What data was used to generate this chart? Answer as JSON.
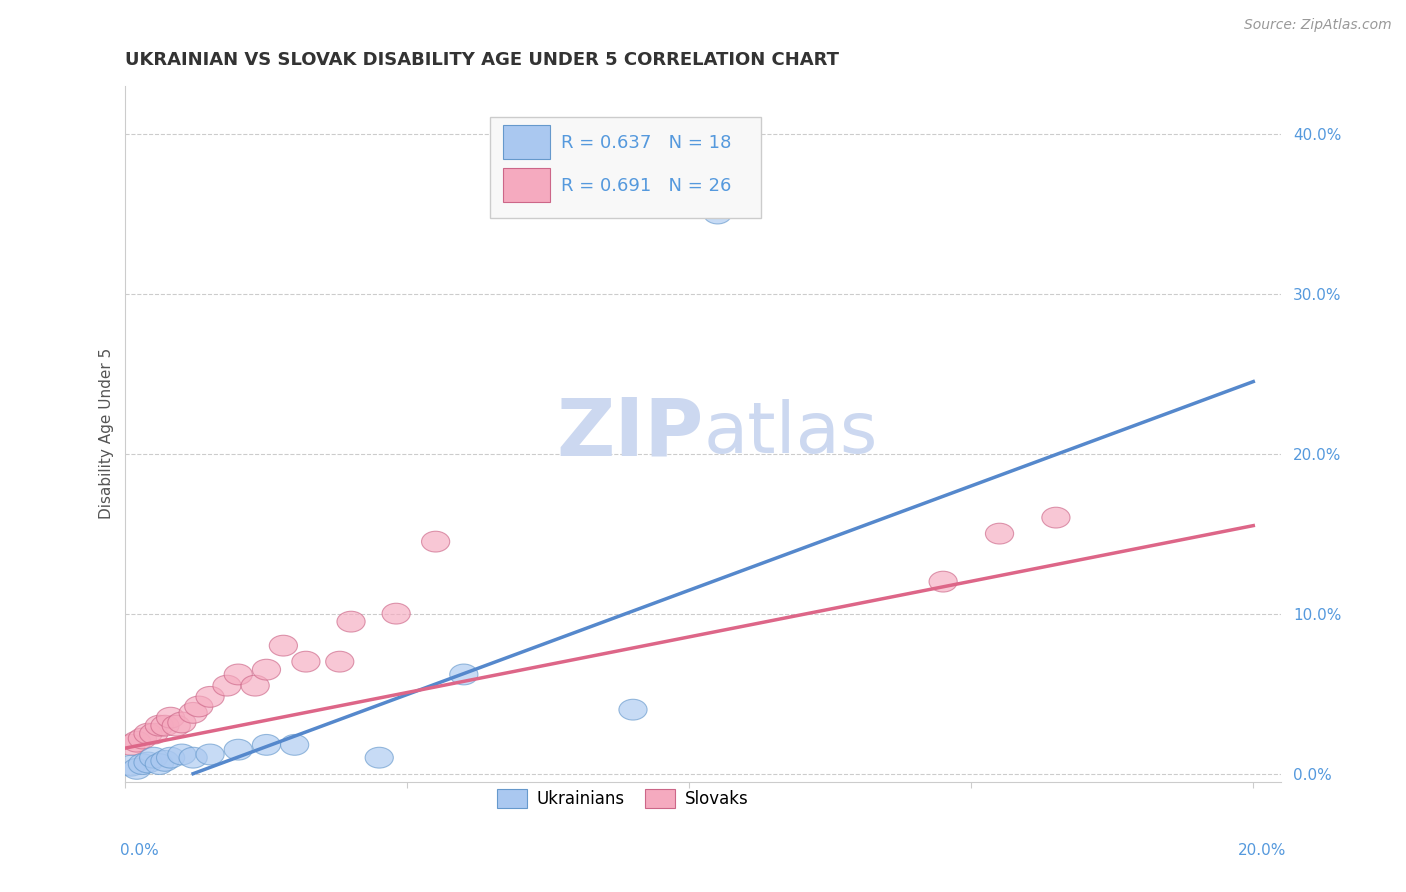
{
  "title": "UKRAINIAN VS SLOVAK DISABILITY AGE UNDER 5 CORRELATION CHART",
  "source": "Source: ZipAtlas.com",
  "ylabel": "Disability Age Under 5",
  "ytick_labels": [
    "0.0%",
    "10.0%",
    "20.0%",
    "30.0%",
    "40.0%"
  ],
  "ytick_values": [
    0.0,
    0.1,
    0.2,
    0.3,
    0.4
  ],
  "xlim": [
    0.0,
    0.205
  ],
  "ylim": [
    -0.005,
    0.43
  ],
  "r_ukrainian": 0.637,
  "n_ukrainian": 18,
  "r_slovak": 0.691,
  "n_slovak": 26,
  "ukrainian_color": "#aac8f0",
  "ukrainian_edge": "#6699cc",
  "slovak_color": "#f5aabf",
  "slovak_edge": "#cc6688",
  "trendline_ukrainian_color": "#5588cc",
  "trendline_slovak_color": "#dd6688",
  "background_color": "#ffffff",
  "watermark_zip": "ZIP",
  "watermark_atlas": "atlas",
  "grid_color": "#cccccc",
  "ytick_color": "#5599dd",
  "xtick_color": "#5599dd",
  "title_color": "#333333",
  "source_color": "#999999",
  "ylabel_color": "#555555",
  "legend_text_color": "#5599dd",
  "ukrainian_x": [
    0.001,
    0.002,
    0.003,
    0.004,
    0.005,
    0.006,
    0.007,
    0.008,
    0.01,
    0.012,
    0.015,
    0.02,
    0.025,
    0.03,
    0.045,
    0.06,
    0.09,
    0.105
  ],
  "ukrainian_y": [
    0.005,
    0.003,
    0.006,
    0.007,
    0.01,
    0.006,
    0.008,
    0.01,
    0.012,
    0.01,
    0.012,
    0.015,
    0.018,
    0.018,
    0.01,
    0.062,
    0.04,
    0.35
  ],
  "slovak_x": [
    0.001,
    0.002,
    0.003,
    0.004,
    0.005,
    0.006,
    0.007,
    0.008,
    0.009,
    0.01,
    0.012,
    0.013,
    0.015,
    0.018,
    0.02,
    0.023,
    0.025,
    0.028,
    0.032,
    0.038,
    0.04,
    0.048,
    0.055,
    0.145,
    0.155,
    0.165
  ],
  "slovak_y": [
    0.018,
    0.02,
    0.022,
    0.025,
    0.025,
    0.03,
    0.03,
    0.035,
    0.03,
    0.032,
    0.038,
    0.042,
    0.048,
    0.055,
    0.062,
    0.055,
    0.065,
    0.08,
    0.07,
    0.07,
    0.095,
    0.1,
    0.145,
    0.12,
    0.15,
    0.16
  ],
  "trend_ukr_x0": 0.012,
  "trend_ukr_y0": 0.0,
  "trend_ukr_x1": 0.2,
  "trend_ukr_y1": 0.245,
  "trend_slk_x0": 0.0,
  "trend_slk_y0": 0.016,
  "trend_slk_x1": 0.2,
  "trend_slk_y1": 0.155,
  "title_fontsize": 13,
  "axis_label_fontsize": 11,
  "tick_fontsize": 11,
  "legend_fontsize": 13,
  "source_fontsize": 10
}
